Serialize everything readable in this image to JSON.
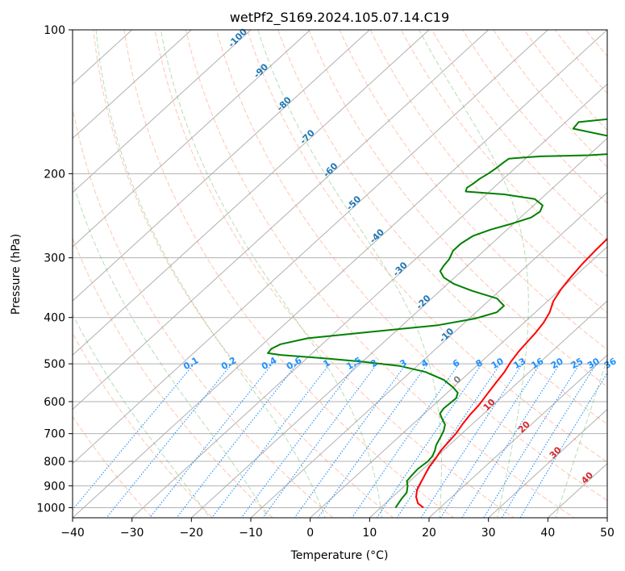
{
  "chart_data": {
    "type": "line",
    "title": "wetPf2_S169.2024.105.07.14.C19",
    "xlabel": "Temperature (°C)",
    "ylabel": "Pressure (hPa)",
    "xlim": [
      -40,
      50
    ],
    "ylim": [
      1050,
      100
    ],
    "y_scale": "log",
    "grid": true,
    "x_ticks": [
      -40,
      -30,
      -20,
      -10,
      0,
      10,
      20,
      30,
      40,
      50
    ],
    "y_ticks": [
      100,
      200,
      300,
      400,
      500,
      600,
      700,
      800,
      900,
      1000
    ],
    "skew": 45,
    "series": [
      {
        "role": "temperature",
        "color": "#ff0000",
        "points": [
          [
            17.2,
            1000
          ],
          [
            15.5,
            980
          ],
          [
            14.0,
            950
          ],
          [
            12.9,
            920
          ],
          [
            12.2,
            890
          ],
          [
            11.3,
            850
          ],
          [
            10.6,
            820
          ],
          [
            10.2,
            790
          ],
          [
            9.6,
            760
          ],
          [
            9.3,
            730
          ],
          [
            9.0,
            700
          ],
          [
            8.4,
            670
          ],
          [
            7.9,
            640
          ],
          [
            7.6,
            610
          ],
          [
            7.0,
            580
          ],
          [
            6.4,
            550
          ],
          [
            5.8,
            520
          ],
          [
            5.0,
            495
          ],
          [
            4.4,
            470
          ],
          [
            4.1,
            450
          ],
          [
            3.8,
            430
          ],
          [
            3.3,
            410
          ],
          [
            2.4,
            390
          ],
          [
            1.0,
            370
          ],
          [
            0.1,
            350
          ],
          [
            -0.5,
            330
          ],
          [
            -1.0,
            310
          ],
          [
            -1.3,
            290
          ],
          [
            -1.5,
            270
          ],
          [
            -1.3,
            250
          ],
          [
            -0.7,
            235
          ],
          [
            0.4,
            222
          ],
          [
            1.7,
            212
          ],
          [
            3.0,
            203
          ],
          [
            4.0,
            195
          ],
          [
            4.8,
            187
          ],
          [
            5.3,
            178
          ],
          [
            5.8,
            170
          ],
          [
            6.1,
            163
          ],
          [
            6.7,
            155
          ],
          [
            7.4,
            147
          ],
          [
            8.4,
            138
          ],
          [
            9.4,
            130
          ],
          [
            10.6,
            122
          ],
          [
            12.0,
            115
          ],
          [
            13.8,
            108
          ],
          [
            15.0,
            100
          ]
        ]
      },
      {
        "role": "dewpoint",
        "color": "#008000",
        "points": [
          [
            12.5,
            1000
          ],
          [
            12.2,
            980
          ],
          [
            11.9,
            960
          ],
          [
            11.6,
            930
          ],
          [
            10.5,
            900
          ],
          [
            9.5,
            880
          ],
          [
            9.3,
            860
          ],
          [
            9.1,
            830
          ],
          [
            9.4,
            800
          ],
          [
            9.2,
            780
          ],
          [
            8.6,
            760
          ],
          [
            7.8,
            740
          ],
          [
            7.0,
            710
          ],
          [
            6.4,
            690
          ],
          [
            5.5,
            670
          ],
          [
            3.8,
            650
          ],
          [
            2.6,
            635
          ],
          [
            2.3,
            620
          ],
          [
            2.4,
            605
          ],
          [
            2.5,
            590
          ],
          [
            1.8,
            575
          ],
          [
            0.0,
            560
          ],
          [
            -3.0,
            540
          ],
          [
            -7.5,
            520
          ],
          [
            -13.0,
            505
          ],
          [
            -20.0,
            495
          ],
          [
            -26.0,
            488
          ],
          [
            -31.0,
            483
          ],
          [
            -35.0,
            479
          ],
          [
            -37.5,
            475
          ],
          [
            -37.7,
            465
          ],
          [
            -37.0,
            455
          ],
          [
            -33.5,
            442
          ],
          [
            -25.0,
            430
          ],
          [
            -14.0,
            415
          ],
          [
            -9.0,
            402
          ],
          [
            -6.5,
            390
          ],
          [
            -6.5,
            378
          ],
          [
            -9.0,
            365
          ],
          [
            -14.5,
            352
          ],
          [
            -19.0,
            340
          ],
          [
            -21.8,
            330
          ],
          [
            -23.6,
            320
          ],
          [
            -24.0,
            312
          ],
          [
            -24.3,
            302
          ],
          [
            -25.2,
            290
          ],
          [
            -25.2,
            280
          ],
          [
            -24.6,
            270
          ],
          [
            -22.8,
            262
          ],
          [
            -20.5,
            255
          ],
          [
            -18.2,
            247
          ],
          [
            -17.8,
            240
          ],
          [
            -18.5,
            233
          ],
          [
            -21.0,
            226
          ],
          [
            -27.0,
            221
          ],
          [
            -34.0,
            218
          ],
          [
            -34.5,
            214
          ],
          [
            -34.2,
            210
          ],
          [
            -34.0,
            205
          ],
          [
            -33.5,
            200
          ],
          [
            -33.2,
            195
          ],
          [
            -33.0,
            190
          ],
          [
            -32.8,
            186
          ],
          [
            -28.0,
            184
          ],
          [
            -20.0,
            183
          ],
          [
            -14.0,
            181
          ],
          [
            -13.0,
            177
          ],
          [
            -14.5,
            172
          ],
          [
            -20.0,
            167
          ],
          [
            -27.5,
            161
          ],
          [
            -27.8,
            156
          ],
          [
            -22.0,
            153
          ],
          [
            -15.0,
            150
          ],
          [
            -9.0,
            146
          ],
          [
            -5.0,
            142
          ],
          [
            -3.0,
            137
          ],
          [
            -2.5,
            131
          ],
          [
            -2.0,
            124
          ],
          [
            -1.0,
            116
          ],
          [
            0.5,
            109
          ],
          [
            1.5,
            104
          ],
          [
            2.2,
            100
          ]
        ]
      }
    ],
    "dry_adiabats": [
      -30,
      -20,
      -10,
      0,
      10,
      20,
      30,
      40,
      50,
      60,
      70,
      80,
      90,
      100,
      110,
      120,
      130,
      140,
      150,
      160,
      170,
      180,
      190,
      200
    ],
    "moist_adiabats": [
      -20,
      -10,
      0,
      10,
      20,
      30,
      40
    ],
    "mixing_ratio_lines": {
      "values": [
        0.1,
        0.2,
        0.4,
        0.6,
        1,
        1.5,
        2,
        3,
        4,
        6,
        8,
        10,
        13,
        16,
        20,
        25,
        30,
        36
      ],
      "labels": [
        "0.1",
        "0.2",
        "0.4",
        "0.6",
        "1",
        "1.5",
        "2",
        "3",
        "4",
        "6",
        "8",
        "10",
        "13",
        "16",
        "20",
        "25",
        "30",
        "36"
      ]
    },
    "wet_bulb_labels": {
      "blue": [
        "-100",
        "-90",
        "-80",
        "-70",
        "-60",
        "-50",
        "-40",
        "-30",
        "-20",
        "-10"
      ],
      "gray": [
        "0"
      ],
      "red": [
        "10",
        "20",
        "30",
        "40"
      ]
    },
    "colors": {
      "temperature": "#ff0000",
      "dewpoint": "#008000",
      "grid": "#b0b0b0",
      "dry_adiabat": "#ff7f50",
      "moist_adiabat": "#2ca02c",
      "mixing_ratio": "#1e90ff",
      "wet_bulb_cold": "#1f77b4",
      "wet_bulb_zero": "#808080",
      "wet_bulb_warm": "#d62728"
    }
  }
}
